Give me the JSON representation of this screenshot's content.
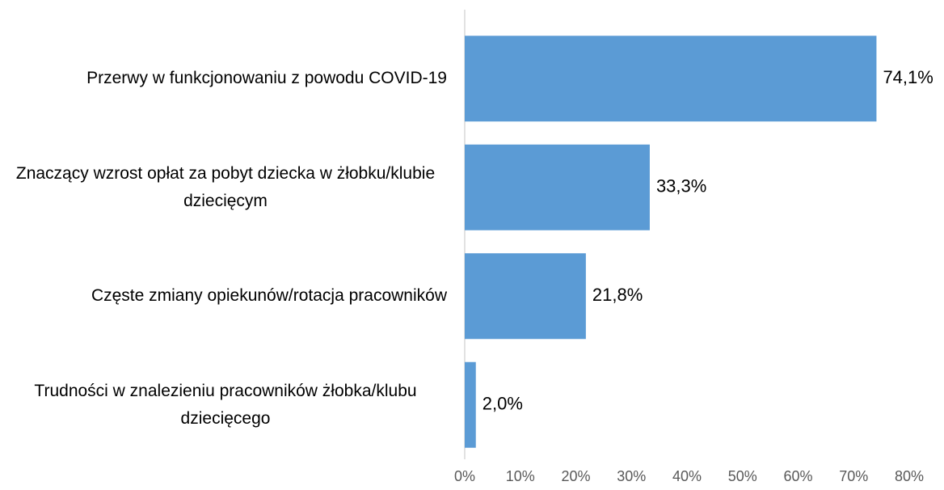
{
  "chart_data": {
    "type": "bar",
    "orientation": "horizontal",
    "categories": [
      "Przerwy w funkcjonowaniu z powodu COVID-19",
      "Znaczący wzrost opłat za pobyt dziecka w żłobku/klubie dziecięcym",
      "Częste zmiany opiekunów/rotacja pracowników",
      "Trudności w znalezieniu pracowników żłobka/klubu dziecięcego"
    ],
    "values": [
      74.1,
      33.3,
      21.8,
      2.0
    ],
    "value_labels": [
      "74,1%",
      "33,3%",
      "21,8%",
      "2,0%"
    ],
    "color": "#5b9bd5",
    "xlim": [
      0,
      80
    ],
    "xticks": [
      {
        "value": 0,
        "label": "0%"
      },
      {
        "value": 10,
        "label": "10%"
      },
      {
        "value": 20,
        "label": "20%"
      },
      {
        "value": 30,
        "label": "30%"
      },
      {
        "value": 40,
        "label": "40%"
      },
      {
        "value": 50,
        "label": "50%"
      },
      {
        "value": 60,
        "label": "60%"
      },
      {
        "value": 70,
        "label": "70%"
      },
      {
        "value": 80,
        "label": "80%"
      }
    ],
    "grid": false
  }
}
